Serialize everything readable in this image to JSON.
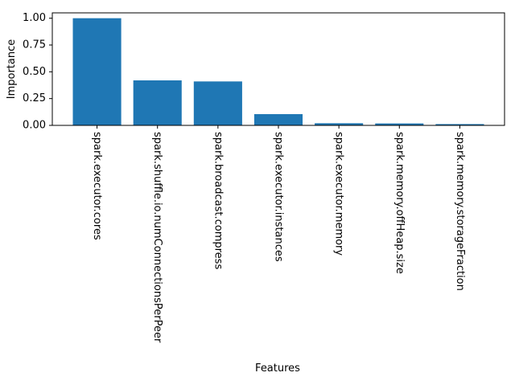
{
  "chart_data": {
    "type": "bar",
    "title": "",
    "xlabel": "Features",
    "ylabel": "Importance",
    "categories": [
      "spark.executor.cores",
      "spark.shuffle.io.numConnectionsPerPeer",
      "spark.broadcast.compress",
      "spark.executor.instances",
      "spark.executor.memory",
      "spark.memory.offHeap.size",
      "spark.memory.storageFraction"
    ],
    "values": [
      1.0,
      0.42,
      0.41,
      0.105,
      0.02,
      0.018,
      0.012
    ],
    "ylim": [
      0,
      1.05
    ],
    "yticks": [
      "0.00",
      "0.25",
      "0.50",
      "0.75",
      "1.00"
    ],
    "ytick_values": [
      0,
      0.25,
      0.5,
      0.75,
      1.0
    ],
    "grid": false,
    "legend": "none",
    "colors": {
      "bar": "#1f77b4",
      "axis": "#000000",
      "background": "#ffffff"
    }
  }
}
